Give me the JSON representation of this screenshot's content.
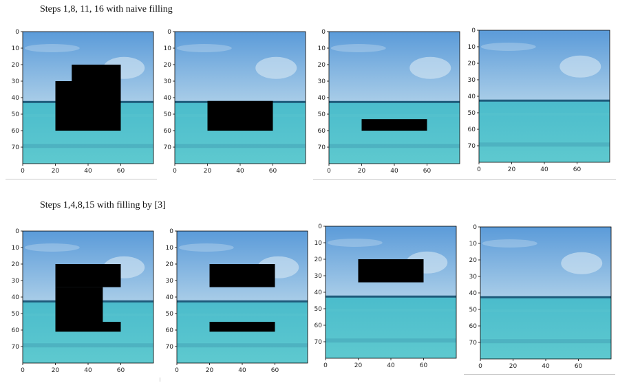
{
  "captions": {
    "top": "Steps 1,8, 11, 16 with naive filling",
    "bottom": "Steps 1,4,8,15 with filling by [3]"
  },
  "axes": {
    "y_ticks": [
      "0",
      "10",
      "20",
      "30",
      "40",
      "50",
      "60",
      "70"
    ],
    "x_ticks": [
      "0",
      "20",
      "40",
      "60"
    ],
    "x_range": [
      0,
      80
    ],
    "y_range": [
      0,
      80
    ]
  },
  "colors": {
    "sky_top": "#5b9bd9",
    "sky_bottom": "#a9cde8",
    "horizon": "#1e5a7a",
    "sea_top": "#4bbccc",
    "sea_bottom": "#5ec9cf",
    "mask": "#000000"
  },
  "rows": [
    {
      "name": "naive",
      "panels": [
        {
          "step": 1,
          "masks": [
            [
              20,
              30,
              60,
              60
            ],
            [
              30,
              20,
              60,
              30
            ]
          ]
        },
        {
          "step": 8,
          "masks": [
            [
              20,
              42,
              60,
              60
            ]
          ]
        },
        {
          "step": 11,
          "masks": [
            [
              20,
              53,
              60,
              60
            ]
          ]
        },
        {
          "step": 16,
          "masks": []
        }
      ]
    },
    {
      "name": "filling-by-3",
      "panels": [
        {
          "step": 1,
          "masks": [
            [
              20,
              20,
              60,
              34
            ],
            [
              20,
              34,
              49,
              55
            ],
            [
              20,
              55,
              60,
              61
            ]
          ]
        },
        {
          "step": 4,
          "masks": [
            [
              20,
              20,
              60,
              34
            ],
            [
              20,
              55,
              60,
              61
            ]
          ]
        },
        {
          "step": 8,
          "masks": [
            [
              20,
              20,
              60,
              34
            ]
          ]
        },
        {
          "step": 15,
          "masks": []
        }
      ]
    }
  ]
}
